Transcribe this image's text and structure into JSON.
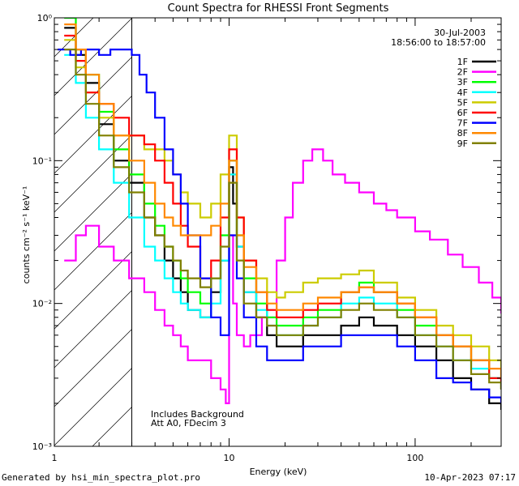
{
  "chart_data": {
    "type": "line",
    "title": "Count Spectra for RHESSI Front Segments",
    "xlabel": "Energy (keV)",
    "ylabel": "counts cm⁻² s⁻¹ keV⁻¹",
    "x_scale": "log",
    "y_scale": "log",
    "xlim": [
      1.15,
      290
    ],
    "ylim": [
      0.001,
      1.0
    ],
    "x_tick_labels": [
      "1",
      "10",
      "100"
    ],
    "y_tick_labels": [
      "10⁻³",
      "10⁻²",
      "10⁻¹",
      "10⁰"
    ],
    "date": "30-Jul-2003",
    "time_range": "18:56:00 to 18:57:00",
    "annotations": [
      "Includes Background",
      "Att A0, FDecim 3"
    ],
    "background_region_max_kev": 3.0,
    "legend_position": "top-right",
    "series": [
      {
        "name": "1F",
        "color": "#000000",
        "x": [
          1.3,
          1.5,
          1.7,
          2.0,
          2.4,
          2.9,
          3.5,
          4.0,
          4.5,
          5.0,
          5.5,
          6.0,
          7.0,
          8.0,
          9.0,
          10.0,
          10.5,
          11.0,
          12.0,
          14.0,
          16.0,
          18.0,
          20.0,
          25.0,
          30.0,
          40.0,
          50.0,
          60.0,
          80.0,
          100.0,
          130.0,
          160.0,
          200.0,
          250.0,
          290.0
        ],
        "values": [
          0.85,
          0.55,
          0.35,
          0.18,
          0.1,
          0.07,
          0.04,
          0.03,
          0.02,
          0.015,
          0.012,
          0.009,
          0.008,
          0.012,
          0.02,
          0.09,
          0.05,
          0.025,
          0.012,
          0.008,
          0.006,
          0.005,
          0.005,
          0.006,
          0.006,
          0.007,
          0.008,
          0.007,
          0.006,
          0.005,
          0.004,
          0.003,
          0.0025,
          0.002,
          0.0018
        ]
      },
      {
        "name": "2F",
        "color": "#ff00ff",
        "x": [
          1.3,
          1.5,
          1.7,
          2.0,
          2.4,
          2.9,
          3.5,
          4.0,
          4.5,
          5.0,
          5.5,
          6.0,
          7.0,
          8.0,
          9.0,
          9.6,
          10.0,
          10.5,
          11.0,
          12.0,
          13.0,
          15.0,
          18.0,
          20.0,
          22.0,
          25.0,
          28.0,
          32.0,
          36.0,
          42.0,
          50.0,
          60.0,
          70.0,
          80.0,
          100.0,
          120.0,
          150.0,
          180.0,
          220.0,
          260.0,
          290.0
        ],
        "values": [
          0.02,
          0.03,
          0.035,
          0.025,
          0.02,
          0.015,
          0.012,
          0.009,
          0.007,
          0.006,
          0.005,
          0.004,
          0.004,
          0.003,
          0.0025,
          0.002,
          0.03,
          0.01,
          0.006,
          0.005,
          0.006,
          0.008,
          0.02,
          0.04,
          0.07,
          0.1,
          0.12,
          0.1,
          0.08,
          0.07,
          0.06,
          0.05,
          0.045,
          0.04,
          0.032,
          0.028,
          0.022,
          0.018,
          0.014,
          0.011,
          0.0085
        ]
      },
      {
        "name": "3F",
        "color": "#00ff00",
        "x": [
          1.3,
          1.5,
          1.7,
          2.0,
          2.4,
          2.9,
          3.5,
          4.0,
          4.5,
          5.0,
          5.5,
          6.0,
          7.0,
          8.0,
          9.0,
          10.0,
          11.0,
          12.0,
          14.0,
          16.0,
          18.0,
          20.0,
          25.0,
          30.0,
          40.0,
          50.0,
          60.0,
          80.0,
          100.0,
          130.0,
          160.0,
          200.0,
          250.0,
          290.0
        ],
        "values": [
          1.0,
          0.6,
          0.4,
          0.22,
          0.12,
          0.08,
          0.05,
          0.035,
          0.025,
          0.02,
          0.015,
          0.012,
          0.01,
          0.015,
          0.03,
          0.1,
          0.03,
          0.015,
          0.01,
          0.008,
          0.007,
          0.007,
          0.008,
          0.009,
          0.012,
          0.014,
          0.012,
          0.009,
          0.007,
          0.006,
          0.005,
          0.004,
          0.003,
          0.0025
        ]
      },
      {
        "name": "4F",
        "color": "#00ffff",
        "x": [
          1.3,
          1.5,
          1.7,
          2.0,
          2.4,
          2.9,
          3.5,
          4.0,
          4.5,
          5.0,
          5.5,
          6.0,
          7.0,
          8.0,
          9.0,
          10.0,
          11.0,
          12.0,
          14.0,
          16.0,
          18.0,
          20.0,
          25.0,
          30.0,
          40.0,
          50.0,
          60.0,
          80.0,
          100.0,
          130.0,
          160.0,
          200.0,
          250.0,
          290.0
        ],
        "values": [
          0.55,
          0.35,
          0.2,
          0.12,
          0.07,
          0.04,
          0.025,
          0.02,
          0.015,
          0.012,
          0.01,
          0.009,
          0.008,
          0.01,
          0.02,
          0.08,
          0.025,
          0.012,
          0.009,
          0.007,
          0.006,
          0.006,
          0.007,
          0.008,
          0.01,
          0.011,
          0.01,
          0.008,
          0.006,
          0.005,
          0.004,
          0.0035,
          0.003,
          0.0025
        ]
      },
      {
        "name": "5F",
        "color": "#cccc00",
        "x": [
          1.3,
          1.5,
          1.7,
          2.0,
          2.4,
          2.9,
          3.5,
          4.0,
          4.5,
          5.0,
          5.5,
          6.0,
          7.0,
          8.0,
          9.0,
          10.0,
          11.0,
          12.0,
          14.0,
          16.0,
          18.0,
          20.0,
          25.0,
          30.0,
          40.0,
          50.0,
          60.0,
          80.0,
          100.0,
          130.0,
          160.0,
          200.0,
          250.0,
          290.0
        ],
        "values": [
          0.7,
          0.45,
          0.3,
          0.2,
          0.15,
          0.15,
          0.12,
          0.12,
          0.1,
          0.08,
          0.06,
          0.05,
          0.04,
          0.05,
          0.08,
          0.15,
          0.04,
          0.02,
          0.015,
          0.012,
          0.011,
          0.012,
          0.014,
          0.015,
          0.016,
          0.017,
          0.014,
          0.011,
          0.009,
          0.007,
          0.006,
          0.005,
          0.004,
          0.003
        ]
      },
      {
        "name": "6F",
        "color": "#ff0000",
        "x": [
          1.3,
          1.5,
          1.7,
          2.0,
          2.4,
          2.9,
          3.5,
          4.0,
          4.5,
          5.0,
          5.5,
          6.0,
          7.0,
          8.0,
          9.0,
          10.0,
          11.0,
          12.0,
          14.0,
          16.0,
          18.0,
          20.0,
          25.0,
          30.0,
          40.0,
          50.0,
          60.0,
          80.0,
          100.0,
          130.0,
          160.0,
          200.0,
          250.0,
          290.0
        ],
        "values": [
          0.75,
          0.5,
          0.3,
          0.25,
          0.2,
          0.15,
          0.13,
          0.1,
          0.07,
          0.05,
          0.035,
          0.025,
          0.015,
          0.02,
          0.04,
          0.12,
          0.04,
          0.02,
          0.012,
          0.009,
          0.008,
          0.008,
          0.009,
          0.01,
          0.012,
          0.013,
          0.012,
          0.01,
          0.008,
          0.006,
          0.005,
          0.004,
          0.003,
          0.0025
        ]
      },
      {
        "name": "7F",
        "color": "#0000ff",
        "x": [
          1.2,
          1.4,
          1.6,
          1.8,
          2.0,
          2.3,
          2.6,
          3.0,
          3.3,
          3.6,
          4.0,
          4.5,
          5.0,
          5.5,
          6.0,
          7.0,
          8.0,
          9.0,
          10.0,
          11.0,
          12.0,
          14.0,
          16.0,
          18.0,
          20.0,
          25.0,
          30.0,
          40.0,
          50.0,
          60.0,
          80.0,
          100.0,
          130.0,
          160.0,
          200.0,
          250.0,
          290.0
        ],
        "values": [
          0.6,
          0.55,
          0.6,
          0.6,
          0.55,
          0.6,
          0.6,
          0.55,
          0.4,
          0.3,
          0.2,
          0.12,
          0.08,
          0.05,
          0.03,
          0.015,
          0.008,
          0.006,
          0.03,
          0.015,
          0.008,
          0.005,
          0.004,
          0.004,
          0.004,
          0.005,
          0.005,
          0.006,
          0.006,
          0.006,
          0.005,
          0.004,
          0.003,
          0.0028,
          0.0025,
          0.0022,
          0.002
        ]
      },
      {
        "name": "8F",
        "color": "#ff8800",
        "x": [
          1.3,
          1.5,
          1.7,
          2.0,
          2.4,
          2.9,
          3.5,
          4.0,
          4.5,
          5.0,
          5.5,
          6.0,
          7.0,
          8.0,
          9.0,
          10.0,
          11.0,
          12.0,
          14.0,
          16.0,
          18.0,
          20.0,
          25.0,
          30.0,
          40.0,
          50.0,
          60.0,
          80.0,
          100.0,
          130.0,
          160.0,
          200.0,
          250.0,
          290.0
        ],
        "values": [
          0.9,
          0.6,
          0.4,
          0.25,
          0.15,
          0.1,
          0.07,
          0.05,
          0.04,
          0.035,
          0.03,
          0.03,
          0.03,
          0.035,
          0.05,
          0.1,
          0.03,
          0.018,
          0.012,
          0.01,
          0.009,
          0.009,
          0.01,
          0.011,
          0.012,
          0.013,
          0.012,
          0.01,
          0.008,
          0.006,
          0.005,
          0.004,
          0.0035,
          0.003
        ]
      },
      {
        "name": "9F",
        "color": "#808000",
        "x": [
          1.3,
          1.5,
          1.7,
          2.0,
          2.4,
          2.9,
          3.5,
          4.0,
          4.5,
          5.0,
          5.5,
          6.0,
          7.0,
          8.0,
          9.0,
          10.0,
          11.0,
          12.0,
          14.0,
          16.0,
          18.0,
          20.0,
          25.0,
          30.0,
          40.0,
          50.0,
          60.0,
          80.0,
          100.0,
          130.0,
          160.0,
          200.0,
          250.0,
          290.0
        ],
        "values": [
          0.6,
          0.4,
          0.25,
          0.15,
          0.09,
          0.06,
          0.04,
          0.03,
          0.025,
          0.02,
          0.017,
          0.015,
          0.013,
          0.015,
          0.025,
          0.07,
          0.02,
          0.01,
          0.008,
          0.007,
          0.006,
          0.006,
          0.007,
          0.008,
          0.009,
          0.01,
          0.009,
          0.008,
          0.006,
          0.005,
          0.004,
          0.0032,
          0.0028,
          0.0025
        ]
      }
    ]
  },
  "footer": {
    "left": "Generated by hsi_min_spectra_plot.pro",
    "right": "10-Apr-2023 07:17"
  }
}
